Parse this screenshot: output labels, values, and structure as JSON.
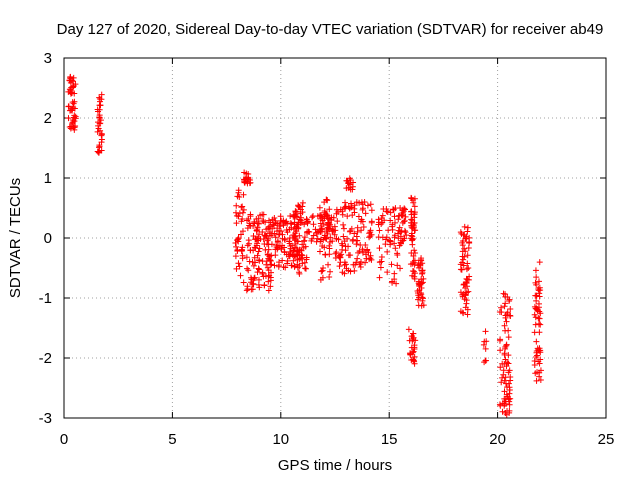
{
  "chart_data": {
    "type": "scatter",
    "title": "Day 127 of 2020, Sidereal Day-to-day VTEC variation (SDTVAR) for receiver ab49",
    "xlabel": "GPS time / hours",
    "ylabel": "SDTVAR / TECUs",
    "xlim": [
      0,
      25
    ],
    "ylim": [
      -3,
      3
    ],
    "xticks": [
      0,
      5,
      10,
      15,
      20,
      25
    ],
    "yticks": [
      -3,
      -2,
      -1,
      0,
      1,
      2,
      3
    ],
    "grid": true,
    "marker": "+",
    "color": "#ff0000",
    "segments": [
      {
        "x": [
          0.2,
          0.55
        ],
        "y": [
          2.7,
          1.8
        ],
        "n": 50
      },
      {
        "x": [
          1.55,
          1.75
        ],
        "y": [
          2.4,
          1.4
        ],
        "n": 35
      },
      {
        "x": [
          7.9,
          8.3
        ],
        "y": [
          1.0,
          -0.8
        ],
        "n": 40
      },
      {
        "x": [
          8.3,
          8.6
        ],
        "y": [
          1.1,
          0.9
        ],
        "n": 20
      },
      {
        "x": [
          8.4,
          9.6
        ],
        "y": [
          0.4,
          -0.9
        ],
        "n": 120
      },
      {
        "x": [
          9.4,
          10.8
        ],
        "y": [
          0.4,
          -0.5
        ],
        "n": 120
      },
      {
        "x": [
          10.6,
          11.2
        ],
        "y": [
          0.6,
          -0.6
        ],
        "n": 60
      },
      {
        "x": [
          11.2,
          12.5
        ],
        "y": [
          0.4,
          -0.1
        ],
        "n": 60
      },
      {
        "x": [
          11.8,
          12.3
        ],
        "y": [
          0.7,
          -0.7
        ],
        "n": 40
      },
      {
        "x": [
          12.5,
          14.2
        ],
        "y": [
          0.6,
          -0.6
        ],
        "n": 120
      },
      {
        "x": [
          13.0,
          13.4
        ],
        "y": [
          1.0,
          0.8
        ],
        "n": 15
      },
      {
        "x": [
          14.5,
          15.5
        ],
        "y": [
          0.5,
          -0.8
        ],
        "n": 60
      },
      {
        "x": [
          15.4,
          15.8
        ],
        "y": [
          0.5,
          -0.1
        ],
        "n": 30
      },
      {
        "x": [
          16.0,
          16.2
        ],
        "y": [
          0.7,
          -0.7
        ],
        "n": 50
      },
      {
        "x": [
          15.9,
          16.2
        ],
        "y": [
          -1.5,
          -2.1
        ],
        "n": 25
      },
      {
        "x": [
          16.3,
          16.6
        ],
        "y": [
          -0.3,
          -1.2
        ],
        "n": 40
      },
      {
        "x": [
          18.3,
          18.7
        ],
        "y": [
          0.2,
          -1.3
        ],
        "n": 60
      },
      {
        "x": [
          19.3,
          19.5
        ],
        "y": [
          -1.4,
          -2.1
        ],
        "n": 8
      },
      {
        "x": [
          20.1,
          20.6
        ],
        "y": [
          -0.9,
          -3.0
        ],
        "n": 80
      },
      {
        "x": [
          21.7,
          22.0
        ],
        "y": [
          -0.4,
          -2.4
        ],
        "n": 60
      }
    ]
  }
}
